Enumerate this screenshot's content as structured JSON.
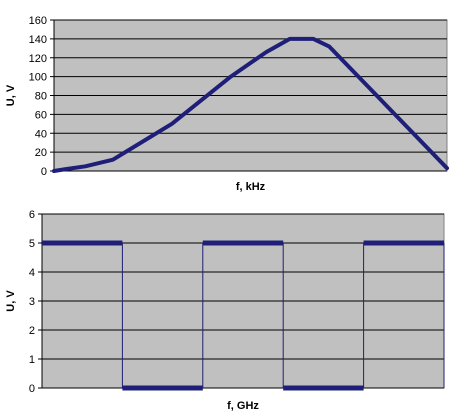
{
  "chart_data": [
    {
      "type": "line",
      "xlabel": "f, kHz",
      "ylabel": "U, V",
      "ylim": [
        0,
        160
      ],
      "yticks": [
        0,
        20,
        40,
        60,
        80,
        100,
        120,
        140,
        160
      ],
      "grid": true,
      "legend": "none",
      "plot_background": "#c0c0c0",
      "line_color": "#1f1f7a",
      "series": [
        {
          "x": [
            0.0,
            0.03,
            0.08,
            0.15,
            0.3,
            0.45,
            0.54,
            0.6,
            0.66,
            0.7,
            1.0
          ],
          "values": [
            0,
            2,
            5,
            12,
            50,
            100,
            126,
            140,
            140,
            132,
            3
          ]
        }
      ]
    },
    {
      "type": "line",
      "xlabel": "f, GHz",
      "ylabel": "U, V",
      "ylim": [
        0,
        6
      ],
      "yticks": [
        0,
        1,
        2,
        3,
        4,
        5,
        6
      ],
      "grid": true,
      "legend": "none",
      "plot_background": "#c0c0c0",
      "line_color": "#1f1f7a",
      "series": [
        {
          "x": [
            0.0,
            0.2,
            0.2,
            0.4,
            0.4,
            0.6,
            0.6,
            0.8,
            0.8,
            1.0,
            1.0
          ],
          "values": [
            5,
            5,
            0,
            0,
            5,
            5,
            0,
            0,
            5,
            5,
            0
          ]
        }
      ]
    }
  ]
}
